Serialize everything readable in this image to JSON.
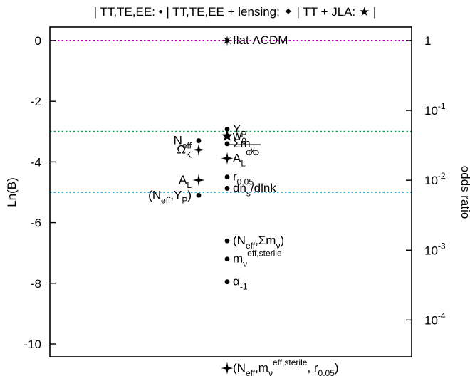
{
  "chart_data": {
    "type": "scatter",
    "title": "| TT,TE,EE: • | TT,TE,EE + lensing: ✦ | TT + JLA: ★ |",
    "ylabel": "Ln(B)",
    "ylabel_right": "odds ratio",
    "ylim": [
      -11.2,
      0.3
    ],
    "yticks": [
      0,
      -2,
      -4,
      -6,
      -8,
      -10
    ],
    "right_ticks": [
      {
        "base": "1",
        "exp": "",
        "lnB": 0
      },
      {
        "base": "10",
        "exp": "-1",
        "lnB": -2.3026
      },
      {
        "base": "10",
        "exp": "-2",
        "lnB": -4.6052
      },
      {
        "base": "10",
        "exp": "-3",
        "lnB": -6.9078
      },
      {
        "base": "10",
        "exp": "-4",
        "lnB": -9.2103
      }
    ],
    "reference_lines": [
      {
        "y": 0,
        "color": "#b200b2"
      },
      {
        "y": -3,
        "color": "#1a9e5c"
      },
      {
        "y": -5,
        "color": "#3cb4e0"
      }
    ],
    "series": [
      {
        "marker": "dot",
        "points": [
          {
            "col": "center",
            "y": -2.92,
            "label": [
              {
                "t": "Y"
              },
              {
                "t": "P",
                "s": "sub"
              }
            ]
          },
          {
            "col": "center",
            "y": -3.4,
            "label": [
              {
                "t": "Σm"
              },
              {
                "t": "ν",
                "s": "sub"
              }
            ]
          },
          {
            "col": "center",
            "y": -4.5,
            "label": [
              {
                "t": "r"
              },
              {
                "t": "0.05",
                "s": "sub"
              }
            ]
          },
          {
            "col": "center",
            "y": -4.87,
            "label": [
              {
                "t": "dn"
              },
              {
                "t": "s",
                "s": "sub"
              },
              {
                "t": "/dlnk"
              }
            ]
          },
          {
            "col": "center",
            "y": -6.6,
            "label": [
              {
                "t": "(N"
              },
              {
                "t": "eff",
                "s": "sub"
              },
              {
                "t": ",Σm"
              },
              {
                "t": "ν",
                "s": "sub"
              },
              {
                "t": ")"
              }
            ]
          },
          {
            "col": "center",
            "y": -7.2,
            "label": [
              {
                "t": "m"
              },
              {
                "t": "ν",
                "s": "sub"
              },
              {
                "t": "eff,sterile",
                "s": "sup"
              }
            ]
          },
          {
            "col": "center",
            "y": -7.95,
            "label": [
              {
                "t": "α"
              },
              {
                "t": "-1",
                "s": "sub"
              }
            ]
          },
          {
            "col": "left",
            "y": -3.3,
            "label": [
              {
                "t": "N"
              },
              {
                "t": "eff",
                "s": "sub"
              }
            ]
          },
          {
            "col": "left",
            "y": -5.1,
            "label": [
              {
                "t": "(N"
              },
              {
                "t": "eff",
                "s": "sub"
              },
              {
                "t": ",Y"
              },
              {
                "t": "P",
                "s": "sub"
              },
              {
                "t": ")"
              }
            ]
          }
        ]
      },
      {
        "marker": "cross4",
        "points": [
          {
            "col": "center",
            "y": -3.88,
            "label": [
              {
                "t": "A"
              },
              {
                "t": "L",
                "s": "sub"
              },
              {
                "t": "ΦΦ",
                "s": "sup"
              }
            ]
          },
          {
            "col": "center",
            "y": -10.8,
            "label": [
              {
                "t": "(N"
              },
              {
                "t": "eff",
                "s": "sub"
              },
              {
                "t": ",m"
              },
              {
                "t": "ν",
                "s": "sub"
              },
              {
                "t": "eff,sterile",
                "s": "sup"
              },
              {
                "t": ", r"
              },
              {
                "t": "0.05",
                "s": "sub"
              },
              {
                "t": ")"
              }
            ]
          },
          {
            "col": "left",
            "y": -3.6,
            "label": [
              {
                "t": "Ω"
              },
              {
                "t": "K",
                "s": "sub"
              }
            ]
          },
          {
            "col": "left",
            "y": -4.6,
            "label": [
              {
                "t": "A"
              },
              {
                "t": "L",
                "s": "sub"
              }
            ]
          }
        ]
      },
      {
        "marker": "star",
        "points": [
          {
            "col": "center",
            "y": -3.15,
            "label": [
              {
                "t": "w"
              },
              {
                "t": "0",
                "s": "sub"
              }
            ]
          }
        ]
      },
      {
        "marker": "burst",
        "points": [
          {
            "col": "center",
            "y": 0,
            "label": [
              {
                "t": "flat ΛCDM"
              }
            ]
          }
        ]
      }
    ]
  }
}
